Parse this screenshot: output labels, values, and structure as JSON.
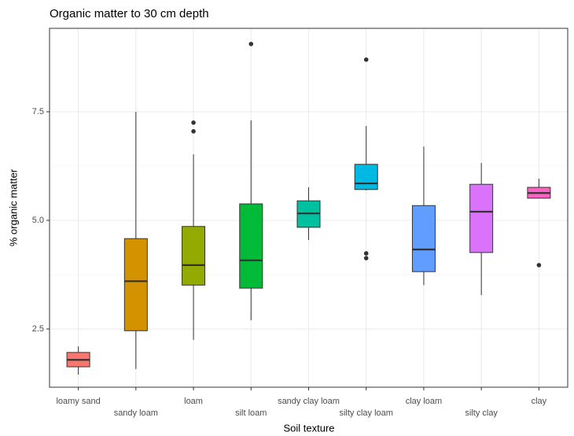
{
  "chart_data": {
    "type": "box",
    "title": "Organic matter to 30 cm depth",
    "x_label": "Soil texture",
    "y_label": "% organic matter",
    "categories": [
      "loamy sand",
      "sandy loam",
      "loam",
      "silt loam",
      "sandy clay loam",
      "silty clay loam",
      "clay loam",
      "silty clay",
      "clay"
    ],
    "colors": [
      "#F8766D",
      "#D39200",
      "#93AA00",
      "#00BA38",
      "#00C19F",
      "#00B9E3",
      "#619CFF",
      "#DB72FB",
      "#FF61C3"
    ],
    "boxes": [
      {
        "min": 1.45,
        "q1": 1.63,
        "median": 1.79,
        "q3": 1.96,
        "max": 2.1,
        "outliers": []
      },
      {
        "min": 1.58,
        "q1": 2.46,
        "median": 3.6,
        "q3": 4.58,
        "max": 7.5,
        "outliers": []
      },
      {
        "min": 2.25,
        "q1": 3.51,
        "median": 3.97,
        "q3": 4.86,
        "max": 6.52,
        "outliers": [
          7.25,
          7.05
        ]
      },
      {
        "min": 2.7,
        "q1": 3.44,
        "median": 4.08,
        "q3": 5.38,
        "max": 7.3,
        "outliers": [
          9.06
        ]
      },
      {
        "min": 4.55,
        "q1": 4.84,
        "median": 5.16,
        "q3": 5.45,
        "max": 5.76,
        "outliers": []
      },
      {
        "min": 5.69,
        "q1": 5.71,
        "median": 5.85,
        "q3": 6.29,
        "max": 7.17,
        "outliers": [
          8.7,
          4.24,
          4.13
        ]
      },
      {
        "min": 3.51,
        "q1": 3.82,
        "median": 4.33,
        "q3": 5.34,
        "max": 6.7,
        "outliers": []
      },
      {
        "min": 3.28,
        "q1": 4.26,
        "median": 5.2,
        "q3": 5.83,
        "max": 6.32,
        "outliers": []
      },
      {
        "min": 5.51,
        "q1": 5.51,
        "median": 5.63,
        "q3": 5.76,
        "max": 5.96,
        "outliers": [
          3.97
        ]
      }
    ],
    "ylim": [
      1.16,
      9.42
    ],
    "yticks": [
      {
        "value": 2.5,
        "label": "2.5"
      },
      {
        "value": 5,
        "label": "5.0"
      },
      {
        "value": 7.5,
        "label": "7.5"
      }
    ],
    "grid": true
  }
}
